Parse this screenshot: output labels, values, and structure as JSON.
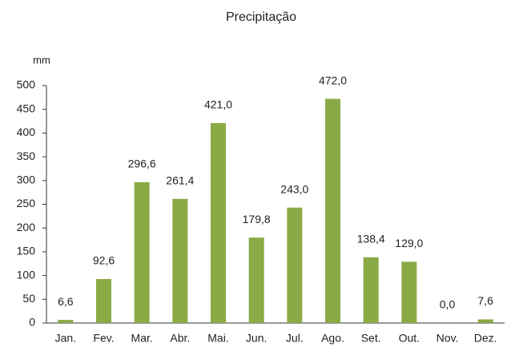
{
  "chart_data": {
    "type": "bar",
    "title": "Precipitação",
    "y_label": "mm",
    "categories": [
      "Jan.",
      "Fev.",
      "Mar.",
      "Abr.",
      "Mai.",
      "Jun.",
      "Jul.",
      "Ago.",
      "Set.",
      "Out.",
      "Nov.",
      "Dez."
    ],
    "values": [
      6.6,
      92.6,
      296.6,
      261.4,
      421.0,
      179.8,
      243.0,
      472.0,
      138.4,
      129.0,
      0.0,
      7.6
    ],
    "value_labels": [
      "6,6",
      "92,6",
      "296,6",
      "261,4",
      "421,0",
      "179,8",
      "243,0",
      "472,0",
      "138,4",
      "129,0",
      "0,0",
      "7,6"
    ],
    "color": "#8aaa46",
    "ylim": [
      0,
      500
    ],
    "yticks": [
      0,
      50,
      100,
      150,
      200,
      250,
      300,
      350,
      400,
      450,
      500
    ],
    "grid": false
  }
}
